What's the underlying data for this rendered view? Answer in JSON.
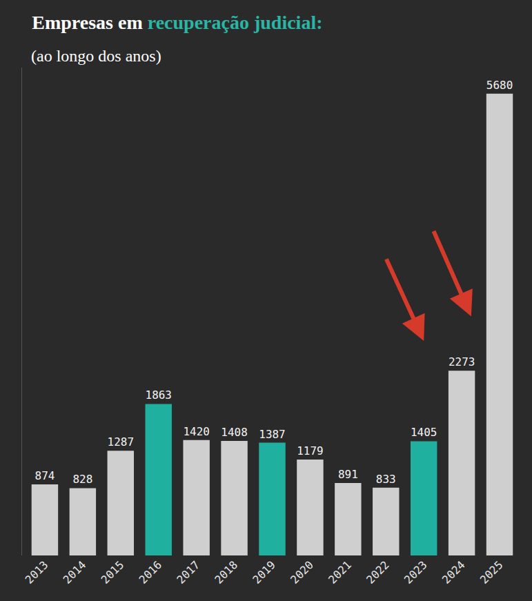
{
  "chart_data": {
    "type": "bar",
    "title": "Empresas em recuperação judicial:",
    "subtitle": "(ao longo dos anos)",
    "categories": [
      "2013",
      "2014",
      "2015",
      "2016",
      "2017",
      "2018",
      "2019",
      "2020",
      "2021",
      "2022",
      "2023",
      "2024",
      "2025"
    ],
    "values": [
      874,
      828,
      1287,
      1863,
      1420,
      1408,
      1387,
      1179,
      891,
      833,
      1405,
      2273,
      5680
    ],
    "colors": [
      "#cfcfcf",
      "#cfcfcf",
      "#cfcfcf",
      "#1fb0a0",
      "#cfcfcf",
      "#cfcfcf",
      "#1fb0a0",
      "#cfcfcf",
      "#cfcfcf",
      "#cfcfcf",
      "#1fb0a0",
      "#cfcfcf",
      "#cfcfcf"
    ],
    "ylim": [
      0,
      6000
    ],
    "yticks": [],
    "grid": false,
    "data_labels": true,
    "tick_labels": "x"
  }
}
